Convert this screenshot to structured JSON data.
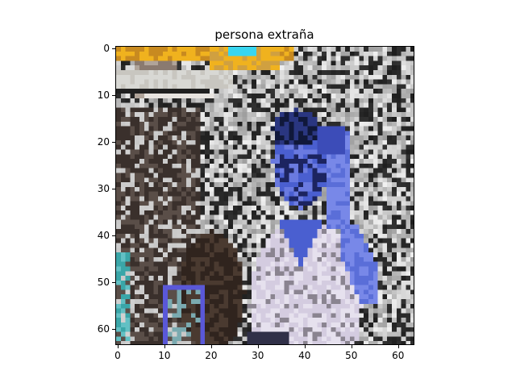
{
  "chart_data": {
    "type": "image",
    "title": "persona extraña",
    "image_size": [
      64,
      64
    ],
    "xlim": [
      -0.5,
      63.5
    ],
    "ylim": [
      63.5,
      -0.5
    ],
    "x_ticks": [
      0,
      10,
      20,
      30,
      40,
      50,
      60
    ],
    "y_ticks": [
      0,
      10,
      20,
      30,
      40,
      50,
      60
    ],
    "grid": false
  },
  "colors": {
    "top_banner": "#f0b21e",
    "cyan_patch": "#38d6f0",
    "blue_figure": "#4a5fd0",
    "white_shirt": "#e6e1ee",
    "dark_bg": "#2a2424",
    "gray_noise": "#8c8c8c"
  }
}
